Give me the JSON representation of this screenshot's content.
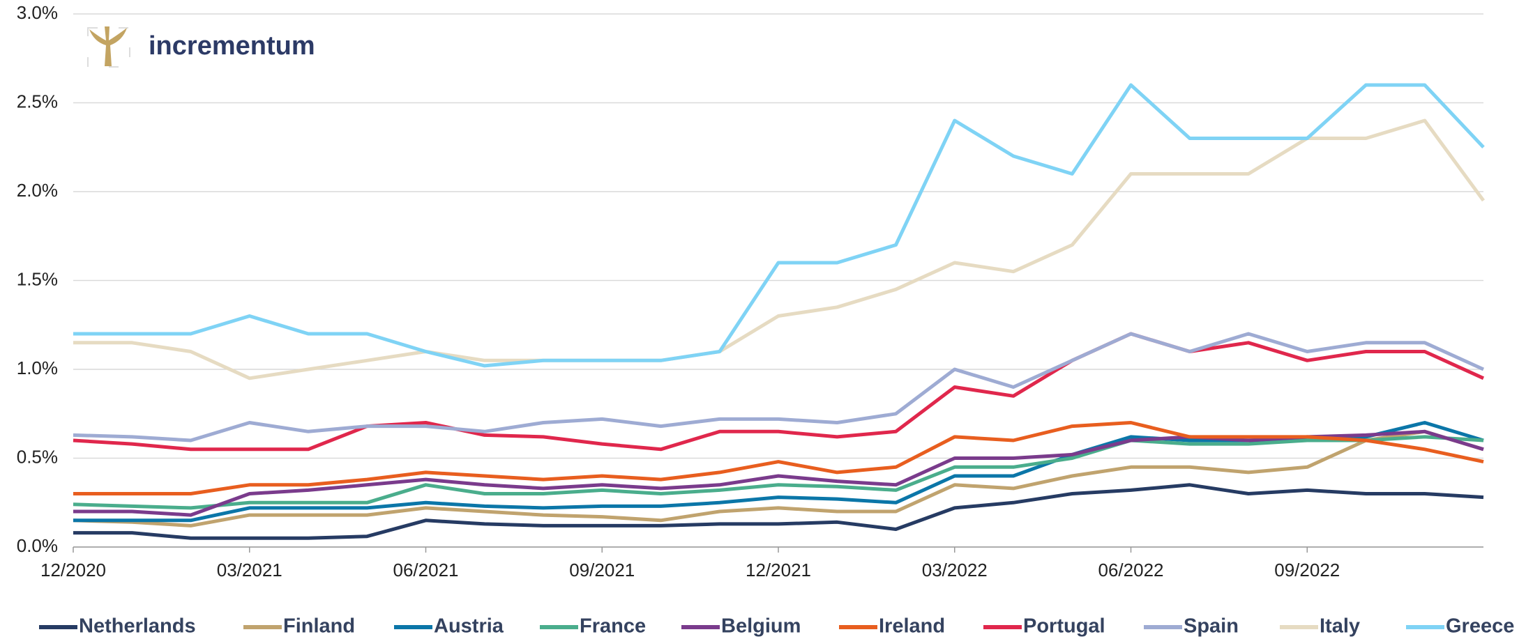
{
  "logo_text": "incrementum",
  "chart_data": {
    "type": "line",
    "categories": [
      "12/2020",
      null,
      null,
      "03/2021",
      null,
      null,
      "06/2021",
      null,
      null,
      "09/2021",
      null,
      null,
      "12/2021",
      null,
      null,
      "03/2022",
      null,
      null,
      "06/2022",
      null,
      null,
      "09/2022",
      null,
      null,
      null
    ],
    "ylim": [
      0,
      3
    ],
    "yticks": [
      {
        "value": 0,
        "label": "0.0%"
      },
      {
        "value": 0.5,
        "label": "0.5%"
      },
      {
        "value": 1,
        "label": "1.0%"
      },
      {
        "value": 1.5,
        "label": "1.5%"
      },
      {
        "value": 2,
        "label": "2.0%"
      },
      {
        "value": 2.5,
        "label": "2.5%"
      },
      {
        "value": 3,
        "label": "3.0%"
      }
    ],
    "grid": true,
    "legend": "bottom",
    "series": [
      {
        "name": "Netherlands",
        "color": "#263b63",
        "values": [
          0.08,
          0.08,
          0.05,
          0.05,
          0.05,
          0.06,
          0.15,
          0.13,
          0.12,
          0.12,
          0.12,
          0.13,
          0.13,
          0.14,
          0.1,
          0.22,
          0.25,
          0.3,
          0.32,
          0.35,
          0.3,
          0.32,
          0.3,
          0.3,
          0.28
        ]
      },
      {
        "name": "Finland",
        "color": "#c0a36e",
        "values": [
          0.15,
          0.14,
          0.12,
          0.18,
          0.18,
          0.18,
          0.22,
          0.2,
          0.18,
          0.17,
          0.15,
          0.2,
          0.22,
          0.2,
          0.2,
          0.35,
          0.33,
          0.4,
          0.45,
          0.45,
          0.42,
          0.45,
          0.6,
          0.65,
          0.55
        ]
      },
      {
        "name": "Austria",
        "color": "#0b76a8",
        "values": [
          0.15,
          0.15,
          0.15,
          0.22,
          0.22,
          0.22,
          0.25,
          0.23,
          0.22,
          0.23,
          0.23,
          0.25,
          0.28,
          0.27,
          0.25,
          0.4,
          0.4,
          0.52,
          0.62,
          0.6,
          0.6,
          0.6,
          0.62,
          0.7,
          0.6
        ]
      },
      {
        "name": "France",
        "color": "#4aad8c",
        "values": [
          0.24,
          0.23,
          0.22,
          0.25,
          0.25,
          0.25,
          0.35,
          0.3,
          0.3,
          0.32,
          0.3,
          0.32,
          0.35,
          0.34,
          0.32,
          0.45,
          0.45,
          0.5,
          0.6,
          0.58,
          0.58,
          0.6,
          0.6,
          0.62,
          0.6
        ]
      },
      {
        "name": "Belgium",
        "color": "#7a3b8c",
        "values": [
          0.2,
          0.2,
          0.18,
          0.3,
          0.32,
          0.35,
          0.38,
          0.35,
          0.33,
          0.35,
          0.33,
          0.35,
          0.4,
          0.37,
          0.35,
          0.5,
          0.5,
          0.52,
          0.6,
          0.62,
          0.6,
          0.62,
          0.63,
          0.65,
          0.55
        ]
      },
      {
        "name": "Ireland",
        "color": "#e85e1f",
        "values": [
          0.3,
          0.3,
          0.3,
          0.35,
          0.35,
          0.38,
          0.42,
          0.4,
          0.38,
          0.4,
          0.38,
          0.42,
          0.48,
          0.42,
          0.45,
          0.62,
          0.6,
          0.68,
          0.7,
          0.62,
          0.62,
          0.62,
          0.6,
          0.55,
          0.48
        ]
      },
      {
        "name": "Portugal",
        "color": "#e0274c",
        "values": [
          0.6,
          0.58,
          0.55,
          0.55,
          0.55,
          0.68,
          0.7,
          0.63,
          0.62,
          0.58,
          0.55,
          0.65,
          0.65,
          0.62,
          0.65,
          0.9,
          0.85,
          1.05,
          1.2,
          1.1,
          1.15,
          1.05,
          1.1,
          1.1,
          0.95
        ]
      },
      {
        "name": "Spain",
        "color": "#9eabd3",
        "values": [
          0.63,
          0.62,
          0.6,
          0.7,
          0.65,
          0.68,
          0.68,
          0.65,
          0.7,
          0.72,
          0.68,
          0.72,
          0.72,
          0.7,
          0.75,
          1.0,
          0.9,
          1.05,
          1.2,
          1.1,
          1.2,
          1.1,
          1.15,
          1.15,
          1.0
        ]
      },
      {
        "name": "Italy",
        "color": "#e6dbc2",
        "values": [
          1.15,
          1.15,
          1.1,
          0.95,
          1.0,
          1.05,
          1.1,
          1.05,
          1.05,
          1.05,
          1.05,
          1.1,
          1.3,
          1.35,
          1.45,
          1.6,
          1.55,
          1.7,
          2.1,
          2.1,
          2.1,
          2.3,
          2.3,
          2.4,
          1.95
        ]
      },
      {
        "name": "Greece",
        "color": "#7fd3f5",
        "values": [
          1.2,
          1.2,
          1.2,
          1.3,
          1.2,
          1.2,
          1.1,
          1.02,
          1.05,
          1.05,
          1.05,
          1.1,
          1.6,
          1.6,
          1.7,
          2.4,
          2.2,
          2.1,
          2.6,
          2.3,
          2.3,
          2.3,
          2.6,
          2.6,
          2.25
        ]
      }
    ]
  }
}
